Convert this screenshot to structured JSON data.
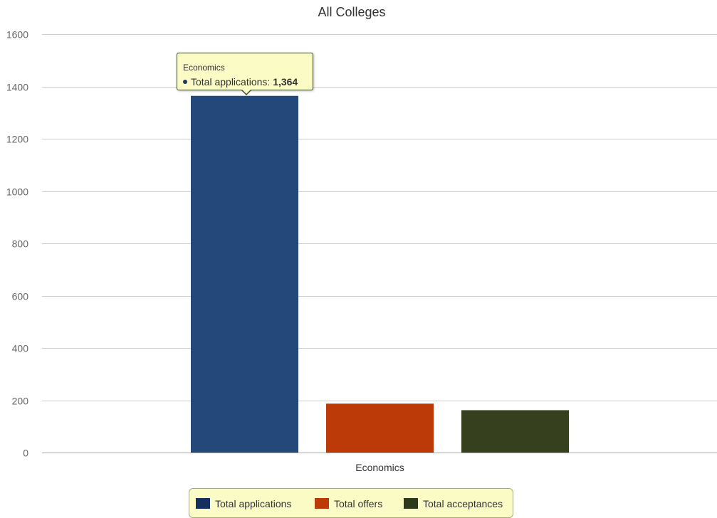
{
  "chart_data": {
    "type": "bar",
    "title": "All Colleges",
    "xlabel": "",
    "ylabel": "",
    "categories": [
      "Economics"
    ],
    "series": [
      {
        "name": "Total applications",
        "values": [
          1364
        ],
        "color": "#25487a"
      },
      {
        "name": "Total offers",
        "values": [
          187
        ],
        "color": "#bb3a08"
      },
      {
        "name": "Total acceptances",
        "values": [
          162
        ],
        "color": "#36401f"
      }
    ],
    "ylim": [
      0,
      1600
    ],
    "yticks": [
      0,
      200,
      400,
      600,
      800,
      1000,
      1200,
      1400,
      1600
    ],
    "grid": true,
    "legend_position": "bottom-center"
  },
  "tooltip": {
    "category": "Economics",
    "series_label": "Total applications:",
    "value": "1,364",
    "dot_color": "#1f3864"
  },
  "legend": {
    "items": [
      {
        "label": "Total applications",
        "color": "#15305e"
      },
      {
        "label": "Total offers",
        "color": "#bb3a08"
      },
      {
        "label": "Total acceptances",
        "color": "#2e381b"
      }
    ]
  }
}
